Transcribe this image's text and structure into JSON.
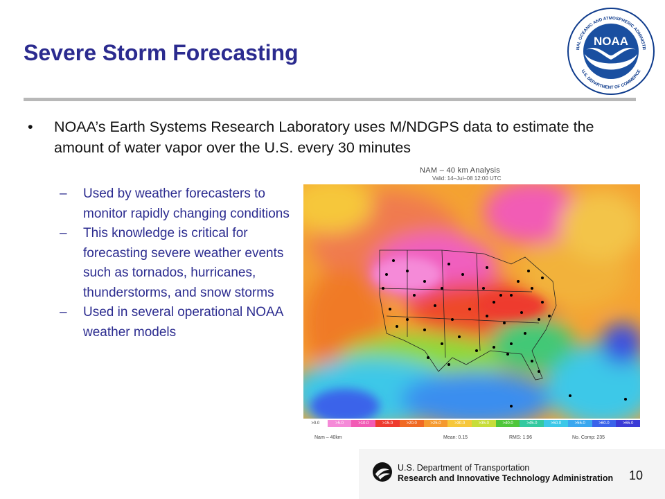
{
  "slide": {
    "title": "Severe Storm Forecasting",
    "bullet": "NOAA’s Earth Systems Research Laboratory uses M/NDGPS data to estimate the amount of water vapor over the U.S. every 30 minutes",
    "bullet_marker": "•",
    "sub_marker": "–",
    "sub_bullets": [
      "Used by weather forecasters to monitor rapidly changing conditions",
      "This knowledge is critical for forecasting severe weather events such as tornados, hurricanes, thunderstorms, and snow storms",
      "Used in several operational NOAA weather models"
    ],
    "page_number": "10"
  },
  "noaa_logo": {
    "text": "NOAA",
    "ring_text_top": "NATIONAL OCEANIC AND ATMOSPHERIC ADMINISTRATION",
    "ring_text_bottom": "U.S. DEPARTMENT OF COMMERCE"
  },
  "map": {
    "title": "NAM – 40 km Analysis",
    "valid": "Valid: 14–Jul–08 12:00 UTC",
    "legend": [
      {
        "label": ">0.0",
        "color": "#ffffff"
      },
      {
        "label": ">5.0",
        "color": "#f58ad8"
      },
      {
        "label": ">10.0",
        "color": "#f25bb5"
      },
      {
        "label": ">15.0",
        "color": "#ee3b2f"
      },
      {
        "label": ">20.0",
        "color": "#f06a24"
      },
      {
        "label": ">25.0",
        "color": "#f59a30"
      },
      {
        "label": ">30.0",
        "color": "#f6c73b"
      },
      {
        "label": ">35.0",
        "color": "#c7dd3a"
      },
      {
        "label": ">40.0",
        "color": "#4fc63a"
      },
      {
        "label": ">45.0",
        "color": "#33c9a0"
      },
      {
        "label": ">50.0",
        "color": "#3cc8e8"
      },
      {
        "label": ">55.0",
        "color": "#3aa7ef"
      },
      {
        "label": ">60.0",
        "color": "#3a63ea"
      },
      {
        "label": ">65.0",
        "color": "#3b3bd6"
      }
    ],
    "stats": {
      "model": "Nam – 40km",
      "mean": "Mean: 0.15",
      "rms": "RMS: 1.96",
      "count": "No. Comp: 235"
    }
  },
  "footer": {
    "line1": "U.S. Department of Transportation",
    "line2": "Research and Innovative Technology Administration"
  },
  "colors": {
    "title": "#2b2b8f",
    "sub_bullets": "#2b2b8f",
    "rule": "#b8b8b8",
    "noaa_blue": "#1a4fa0",
    "noaa_ring": "#0e3b8c"
  }
}
